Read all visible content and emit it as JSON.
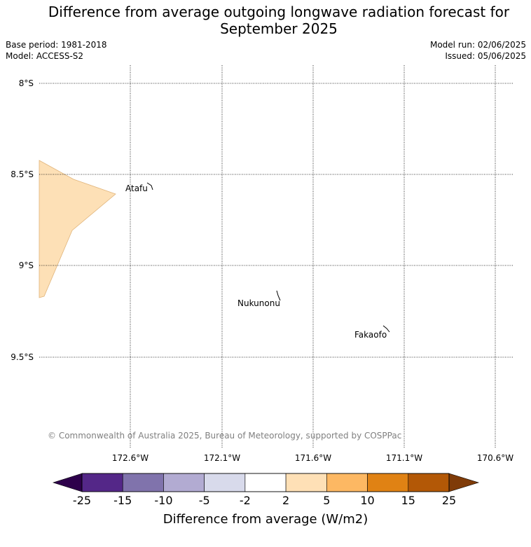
{
  "title": "Difference from average outgoing longwave radiation forecast for September 2025",
  "title_lines": [
    "Difference from average outgoing longwave radiation forecast for",
    "September 2025"
  ],
  "info_left": {
    "base_period": "Base period: 1981-2018",
    "model": "Model: ACCESS-S2"
  },
  "info_right": {
    "model_run": "Model run: 02/06/2025",
    "issued": "Issued: 05/06/2025"
  },
  "map": {
    "lat_labels": [
      "8°S",
      "8.5°S",
      "9°S",
      "9.5°S"
    ],
    "lon_labels": [
      "172.6°W",
      "172.1°W",
      "171.6°W",
      "171.1°W",
      "170.6°W"
    ],
    "places": [
      "Atafu",
      "Nukunonu",
      "Fakaofo"
    ],
    "shaded_region_color": "#fde0b6",
    "gridlines": "dotted",
    "credit": "© Commonwealth of Australia 2025, Bureau of Meteorology, supported by COSPPac"
  },
  "colorbar": {
    "label": "Difference from average (W/m2)",
    "ticks": [
      "-25",
      "-15",
      "-10",
      "-5",
      "-2",
      "2",
      "5",
      "10",
      "15",
      "25"
    ],
    "under_color": "#2d004b",
    "over_color": "#7f3b08",
    "colors": [
      "#542788",
      "#8073ac",
      "#b2abd2",
      "#d8daeb",
      "#ffffff",
      "#fee0b6",
      "#fdb863",
      "#e08214",
      "#b35806"
    ]
  }
}
